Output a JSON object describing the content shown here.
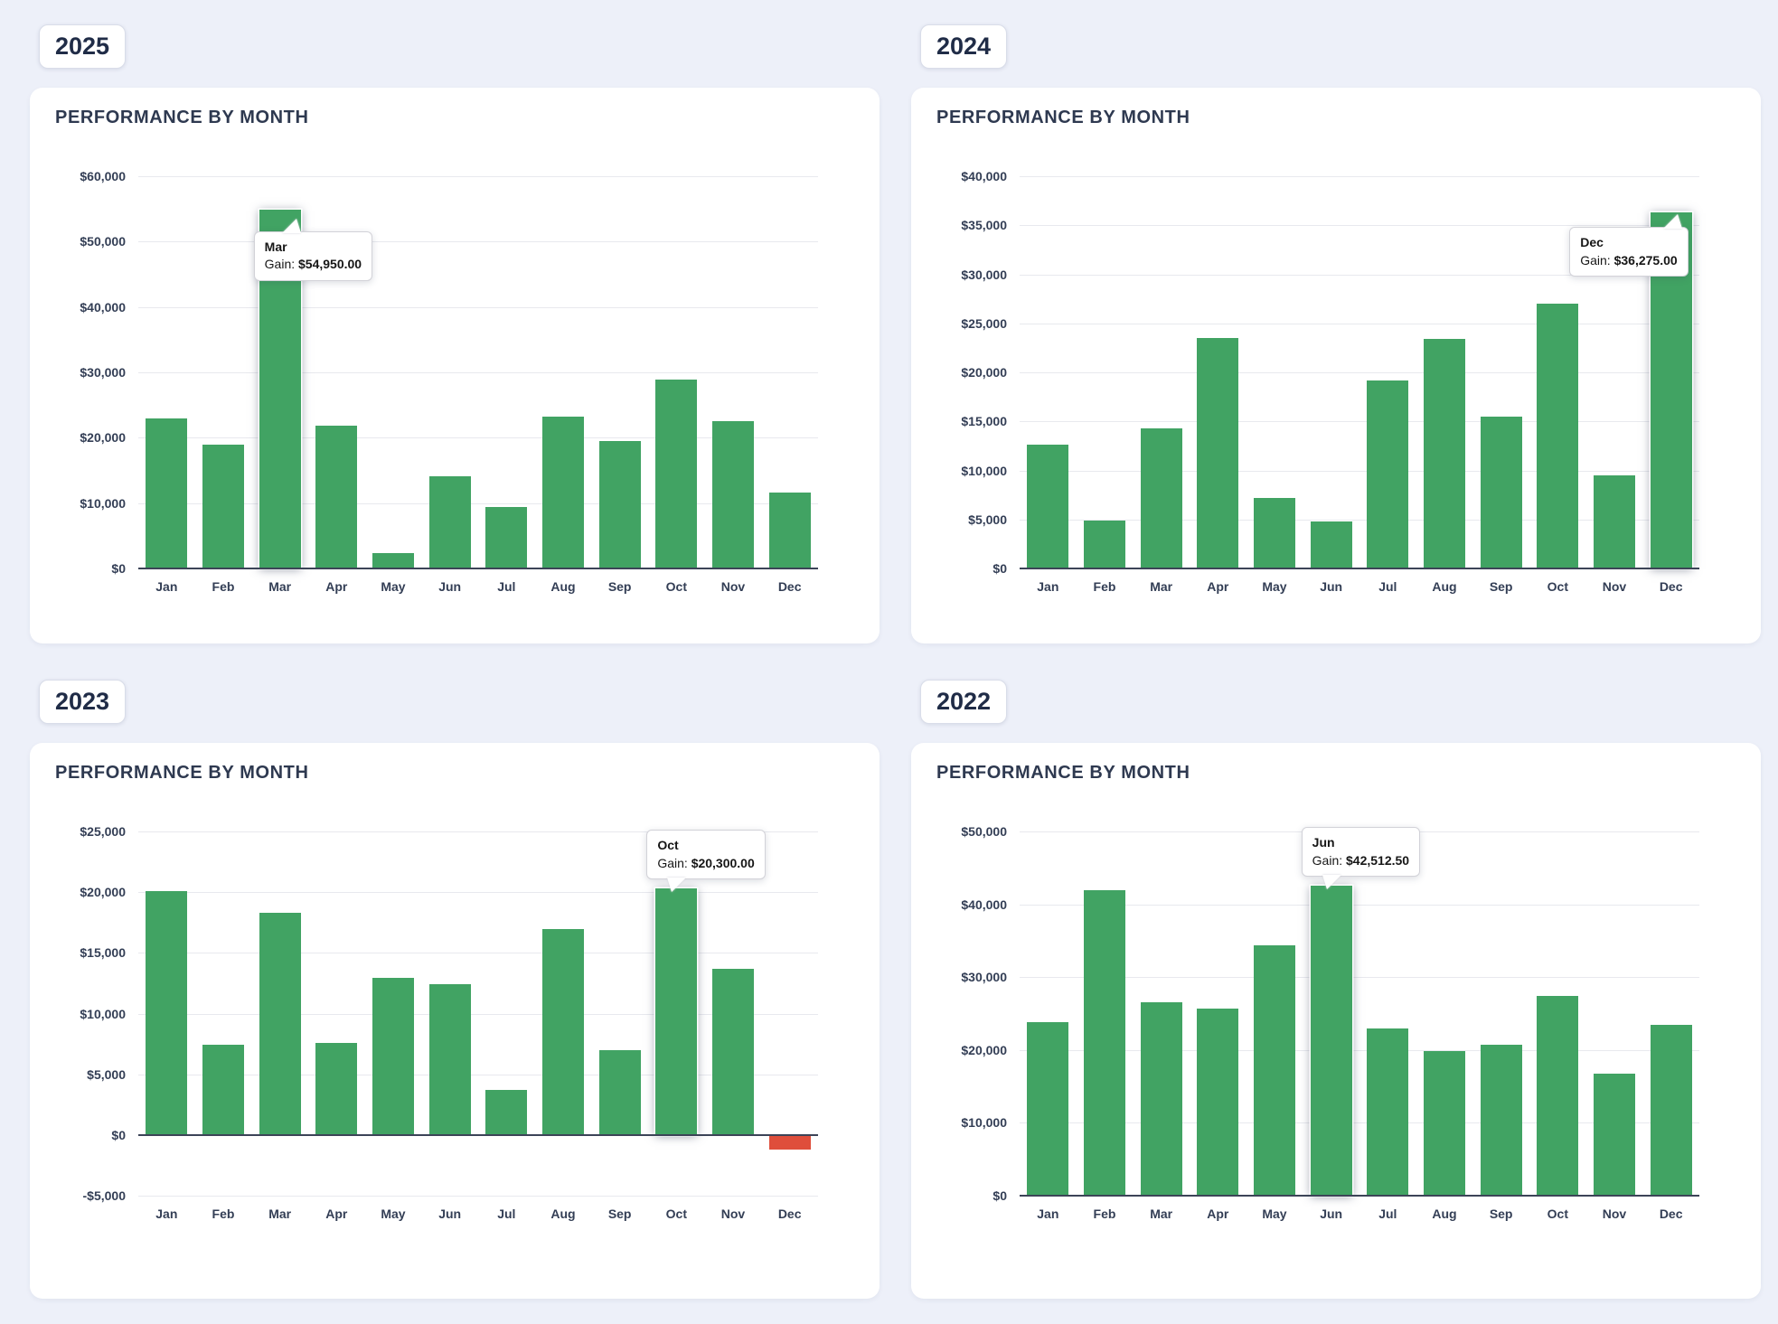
{
  "page": {
    "background_color": "#edf0f9",
    "accent_green": "#41a363",
    "accent_red": "#df4e3b"
  },
  "chart_data": [
    {
      "type": "bar",
      "year": "2025",
      "title": "PERFORMANCE BY MONTH",
      "categories": [
        "Jan",
        "Feb",
        "Mar",
        "Apr",
        "May",
        "Jun",
        "Jul",
        "Aug",
        "Sep",
        "Oct",
        "Nov",
        "Dec"
      ],
      "values": [
        23000,
        19000,
        54950,
        21900,
        2400,
        14100,
        9400,
        23200,
        19500,
        28900,
        22600,
        11600
      ],
      "xlabel": "",
      "ylabel": "",
      "ylim": [
        0,
        60000
      ],
      "ytick_step": 10000,
      "ytick_labels": [
        "$0",
        "$10,000",
        "$20,000",
        "$30,000",
        "$40,000",
        "$50,000",
        "$60,000"
      ],
      "grid": true,
      "bar_color": "#41a363",
      "negative_bar_color": "#df4e3b",
      "tooltip": {
        "month": "Mar",
        "label": "Gain:",
        "value_text": "$54,950.00",
        "placement": "below-right"
      }
    },
    {
      "type": "bar",
      "year": "2024",
      "title": "PERFORMANCE BY MONTH",
      "categories": [
        "Jan",
        "Feb",
        "Mar",
        "Apr",
        "May",
        "Jun",
        "Jul",
        "Aug",
        "Sep",
        "Oct",
        "Nov",
        "Dec"
      ],
      "values": [
        12600,
        4900,
        14300,
        23500,
        7200,
        4800,
        19200,
        23400,
        15500,
        27000,
        9500,
        36275
      ],
      "xlabel": "",
      "ylabel": "",
      "ylim": [
        0,
        40000
      ],
      "ytick_step": 5000,
      "ytick_labels": [
        "$0",
        "$5,000",
        "$10,000",
        "$15,000",
        "$20,000",
        "$25,000",
        "$30,000",
        "$35,000",
        "$40,000"
      ],
      "grid": true,
      "bar_color": "#41a363",
      "negative_bar_color": "#df4e3b",
      "tooltip": {
        "month": "Dec",
        "label": "Gain:",
        "value_text": "$36,275.00",
        "placement": "below-left"
      }
    },
    {
      "type": "bar",
      "year": "2023",
      "title": "PERFORMANCE BY MONTH",
      "categories": [
        "Jan",
        "Feb",
        "Mar",
        "Apr",
        "May",
        "Jun",
        "Jul",
        "Aug",
        "Sep",
        "Oct",
        "Nov",
        "Dec"
      ],
      "values": [
        20100,
        7400,
        18300,
        7550,
        12950,
        12450,
        3700,
        16950,
        7000,
        20300,
        13700,
        -1200
      ],
      "xlabel": "",
      "ylabel": "",
      "ylim": [
        -5000,
        25000
      ],
      "ytick_step": 5000,
      "ytick_labels": [
        "-$5,000",
        "$0",
        "$5,000",
        "$10,000",
        "$15,000",
        "$20,000",
        "$25,000"
      ],
      "grid": true,
      "bar_color": "#41a363",
      "negative_bar_color": "#df4e3b",
      "tooltip": {
        "month": "Oct",
        "label": "Gain:",
        "value_text": "$20,300.00",
        "placement": "above"
      }
    },
    {
      "type": "bar",
      "year": "2022",
      "title": "PERFORMANCE BY MONTH",
      "categories": [
        "Jan",
        "Feb",
        "Mar",
        "Apr",
        "May",
        "Jun",
        "Jul",
        "Aug",
        "Sep",
        "Oct",
        "Nov",
        "Dec"
      ],
      "values": [
        23800,
        41900,
        26600,
        25700,
        34400,
        42512.5,
        23000,
        19900,
        20700,
        27400,
        16800,
        23500
      ],
      "xlabel": "",
      "ylabel": "",
      "ylim": [
        0,
        50000
      ],
      "ytick_step": 10000,
      "ytick_labels": [
        "$0",
        "$10,000",
        "$20,000",
        "$30,000",
        "$40,000",
        "$50,000"
      ],
      "grid": true,
      "bar_color": "#41a363",
      "negative_bar_color": "#df4e3b",
      "tooltip": {
        "month": "Jun",
        "label": "Gain:",
        "value_text": "$42,512.50",
        "placement": "above"
      }
    }
  ]
}
